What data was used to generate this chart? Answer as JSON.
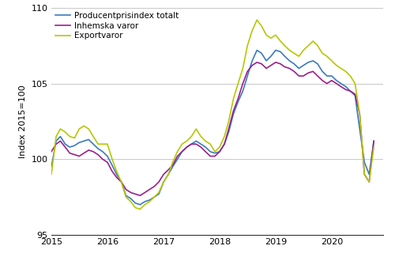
{
  "title": "",
  "ylabel": "Index 2015=100",
  "ylim": [
    95,
    110
  ],
  "yticks": [
    95,
    100,
    105,
    110
  ],
  "legend_labels": [
    "Producentprisindex totalt",
    "Inhemska varor",
    "Exportvaror"
  ],
  "colors": [
    "#3a7abf",
    "#9b1f8a",
    "#b5c800"
  ],
  "line_width": 1.2,
  "producentprisindex_totalt": [
    99.5,
    101.2,
    101.5,
    101.0,
    100.8,
    100.9,
    101.1,
    101.2,
    101.3,
    101.0,
    100.7,
    100.5,
    100.2,
    99.6,
    99.0,
    98.5,
    97.6,
    97.4,
    97.1,
    97.0,
    97.2,
    97.3,
    97.5,
    97.7,
    98.5,
    99.0,
    99.5,
    100.0,
    100.5,
    100.8,
    101.0,
    101.2,
    101.0,
    100.8,
    100.5,
    100.4,
    100.5,
    101.0,
    101.8,
    103.0,
    103.8,
    104.5,
    105.5,
    106.5,
    107.2,
    107.0,
    106.5,
    106.8,
    107.2,
    107.1,
    106.8,
    106.5,
    106.3,
    106.0,
    106.2,
    106.4,
    106.5,
    106.3,
    105.8,
    105.5,
    105.5,
    105.2,
    105.0,
    104.8,
    104.5,
    104.2,
    102.0,
    99.8,
    99.0,
    101.2
  ],
  "inhemska_varor": [
    100.5,
    101.0,
    101.2,
    100.8,
    100.4,
    100.3,
    100.2,
    100.4,
    100.6,
    100.5,
    100.3,
    100.0,
    99.8,
    99.2,
    98.8,
    98.5,
    98.0,
    97.8,
    97.7,
    97.6,
    97.8,
    98.0,
    98.2,
    98.5,
    99.0,
    99.3,
    99.6,
    100.2,
    100.5,
    100.8,
    101.0,
    101.0,
    100.8,
    100.5,
    100.2,
    100.2,
    100.5,
    101.0,
    102.0,
    103.2,
    104.0,
    105.0,
    105.8,
    106.2,
    106.4,
    106.3,
    106.0,
    106.2,
    106.4,
    106.3,
    106.1,
    106.0,
    105.8,
    105.5,
    105.5,
    105.7,
    105.8,
    105.5,
    105.2,
    105.0,
    105.2,
    105.0,
    104.8,
    104.6,
    104.5,
    104.3,
    103.0,
    99.0,
    98.5,
    101.2
  ],
  "exportvaror": [
    99.0,
    101.5,
    102.0,
    101.8,
    101.5,
    101.4,
    102.0,
    102.2,
    102.0,
    101.5,
    101.0,
    101.0,
    101.0,
    100.0,
    99.2,
    98.5,
    97.5,
    97.2,
    96.8,
    96.7,
    97.0,
    97.2,
    97.5,
    97.8,
    98.5,
    99.0,
    99.8,
    100.5,
    101.0,
    101.2,
    101.5,
    102.0,
    101.5,
    101.2,
    101.0,
    100.5,
    100.8,
    101.5,
    102.5,
    104.0,
    105.0,
    106.0,
    107.5,
    108.5,
    109.2,
    108.8,
    108.2,
    108.0,
    108.2,
    107.8,
    107.5,
    107.2,
    107.0,
    106.8,
    107.2,
    107.5,
    107.8,
    107.5,
    107.0,
    106.8,
    106.5,
    106.2,
    106.0,
    105.8,
    105.5,
    105.0,
    103.0,
    99.0,
    98.5,
    100.8
  ]
}
